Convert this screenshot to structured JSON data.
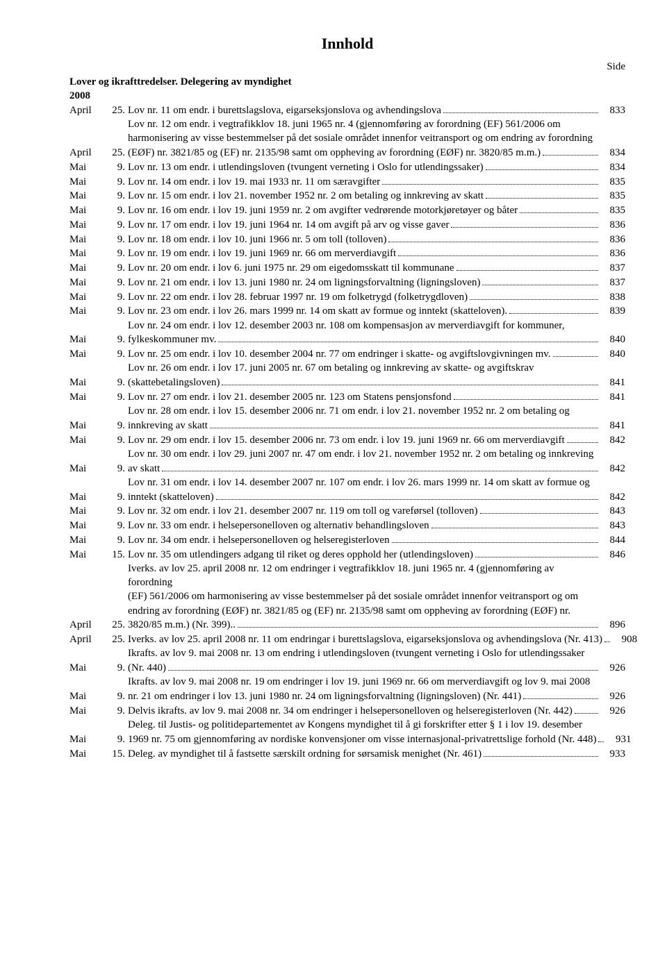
{
  "title": "Innhold",
  "side_label": "Side",
  "section_title": "Lover og ikrafttredelser. Delegering av myndighet",
  "year": "2008",
  "entries": [
    {
      "month": "April",
      "day": "25.",
      "text": "Lov nr. 11 om endr. i burettslagslova, eigarseksjonslova og avhendingslova",
      "page": "833"
    },
    {
      "month": "April",
      "day": "25.",
      "text": "Lov nr. 12 om endr. i vegtrafikklov 18. juni 1965 nr. 4 (gjennomføring av forordning (EF) 561/2006 om harmonisering av visse bestemmelser på det sosiale området innenfor veitransport og om endring av forordning (EØF) nr. 3821/85 og (EF) nr. 2135/98 samt om oppheving av forordning (EØF) nr. 3820/85 m.m.)",
      "page": "834"
    },
    {
      "month": "Mai",
      "day": "9.",
      "text": "Lov nr. 13 om endr. i utlendingsloven (tvungent verneting i Oslo for utlendingssaker)",
      "page": "834"
    },
    {
      "month": "Mai",
      "day": "9.",
      "text": "Lov nr. 14 om endr. i lov 19. mai 1933 nr. 11 om særavgifter",
      "page": "835"
    },
    {
      "month": "Mai",
      "day": "9.",
      "text": "Lov nr. 15 om endr. i lov 21. november 1952 nr. 2 om betaling og innkreving av skatt",
      "page": "835"
    },
    {
      "month": "Mai",
      "day": "9.",
      "text": "Lov nr. 16 om endr. i lov 19. juni 1959 nr. 2 om avgifter vedrørende motorkjøretøyer og båter",
      "page": "835"
    },
    {
      "month": "Mai",
      "day": "9.",
      "text": "Lov nr. 17 om endr. i lov 19. juni 1964 nr. 14 om avgift på arv og visse gaver",
      "page": "836"
    },
    {
      "month": "Mai",
      "day": "9.",
      "text": "Lov nr. 18 om endr. i lov 10. juni 1966 nr. 5 om toll (tolloven)",
      "page": "836"
    },
    {
      "month": "Mai",
      "day": "9.",
      "text": "Lov nr. 19 om endr. i lov 19. juni 1969 nr. 66 om merverdiavgift",
      "page": "836"
    },
    {
      "month": "Mai",
      "day": "9.",
      "text": "Lov nr. 20 om endr. i lov 6. juni 1975 nr. 29 om eigedomsskatt til kommunane",
      "page": "837"
    },
    {
      "month": "Mai",
      "day": "9.",
      "text": "Lov nr. 21 om endr. i lov 13. juni 1980 nr. 24 om ligningsforvaltning (ligningsloven)",
      "page": "837"
    },
    {
      "month": "Mai",
      "day": "9.",
      "text": "Lov nr. 22 om endr. i lov 28. februar 1997 nr. 19 om folketrygd (folketrygdloven)",
      "page": "838"
    },
    {
      "month": "Mai",
      "day": "9.",
      "text": "Lov nr. 23 om endr. i lov 26. mars 1999 nr. 14 om skatt av formue og inntekt (skatteloven).",
      "page": "839"
    },
    {
      "month": "Mai",
      "day": "9.",
      "text": "Lov nr. 24 om endr. i lov 12. desember 2003 nr. 108 om kompensasjon av merverdiavgift for kommuner, fylkeskommuner mv.",
      "page": "840"
    },
    {
      "month": "Mai",
      "day": "9.",
      "text": "Lov nr. 25 om endr. i lov 10. desember 2004 nr. 77 om endringer i skatte- og avgiftslovgivningen mv.",
      "page": "840"
    },
    {
      "month": "Mai",
      "day": "9.",
      "text": "Lov nr. 26 om endr. i lov 17. juni 2005 nr. 67 om betaling og innkreving av skatte- og avgiftskrav (skattebetalingsloven)",
      "page": "841"
    },
    {
      "month": "Mai",
      "day": "9.",
      "text": "Lov nr. 27 om endr. i lov 21. desember 2005 nr. 123 om Statens pensjonsfond",
      "page": "841"
    },
    {
      "month": "Mai",
      "day": "9.",
      "text": "Lov nr. 28 om endr. i lov 15. desember 2006 nr. 71 om endr. i lov 21. november 1952 nr. 2 om betaling og innkreving av skatt",
      "page": "841"
    },
    {
      "month": "Mai",
      "day": "9.",
      "text": "Lov nr. 29 om endr. i lov 15. desember 2006 nr. 73 om endr. i lov 19. juni 1969 nr. 66 om merverdiavgift",
      "page": "842"
    },
    {
      "month": "Mai",
      "day": "9.",
      "text": "Lov nr. 30 om endr. i lov 29. juni 2007 nr. 47 om endr. i lov 21. november 1952 nr. 2 om betaling og innkreving av skatt",
      "page": "842"
    },
    {
      "month": "Mai",
      "day": "9.",
      "text": "Lov nr. 31 om endr. i lov 14. desember 2007 nr. 107 om endr. i lov 26. mars 1999 nr. 14 om skatt av formue og inntekt (skatteloven)",
      "page": "842"
    },
    {
      "month": "Mai",
      "day": "9.",
      "text": "Lov nr. 32 om endr. i lov 21. desember 2007 nr. 119 om toll og vareførsel (tolloven)",
      "page": "843"
    },
    {
      "month": "Mai",
      "day": "9.",
      "text": "Lov nr. 33 om endr. i helsepersonelloven og alternativ behandlingsloven",
      "page": "843"
    },
    {
      "month": "Mai",
      "day": "9.",
      "text": "Lov nr. 34 om endr. i helsepersonelloven og helseregisterloven",
      "page": "844"
    },
    {
      "month": "Mai",
      "day": "15.",
      "text": "Lov nr. 35 om utlendingers adgang til riket og deres opphold her (utlendingsloven)",
      "page": "846"
    },
    {
      "month": "April",
      "day": "25.",
      "text": "Iverks. av lov 25. april 2008 nr. 12 om endringer i vegtrafikklov 18. juni 1965 nr. 4 (gjennomføring av forordning (EF) 561/2006 om harmonisering av visse bestemmelser på det sosiale området innenfor veitransport og om endring av forordning (EØF) nr. 3821/85 og (EF) nr. 2135/98 samt om oppheving av forordning (EØF) nr. 3820/85 m.m.) (Nr. 399)..",
      "page": "896"
    },
    {
      "month": "April",
      "day": "25.",
      "text": "Iverks. av lov 25. april 2008 nr. 11 om endringar i burettslagslova, eigarseksjonslova og avhendingslova (Nr. 413)",
      "page": "908"
    },
    {
      "month": "Mai",
      "day": "9.",
      "text": "Ikrafts. av lov 9. mai 2008 nr. 13 om endring i utlendingsloven (tvungent verneting i Oslo for utlendingssaker (Nr. 440)",
      "page": "926"
    },
    {
      "month": "Mai",
      "day": "9.",
      "text": "Ikrafts. av lov 9. mai 2008 nr. 19 om endringer i lov 19. juni 1969 nr. 66 om merverdiavgift og lov 9. mai 2008 nr. 21 om endringer i lov 13. juni 1980 nr. 24 om ligningsforvaltning (ligningsloven) (Nr. 441)",
      "page": "926"
    },
    {
      "month": "Mai",
      "day": "9.",
      "text": "Delvis ikrafts. av lov 9. mai 2008 nr. 34 om endringer i helsepersonelloven og helseregisterloven (Nr. 442)",
      "page": "926"
    },
    {
      "month": "Mai",
      "day": "9.",
      "text": "Deleg. til Justis- og politidepartementet av Kongens myndighet til å gi forskrifter etter § 1 i lov 19. desember 1969 nr. 75 om gjennomføring av nordiske konvensjoner om visse internasjonal-privatrettslige forhold (Nr. 448)",
      "page": "931"
    },
    {
      "month": "Mai",
      "day": "15.",
      "text": "Deleg. av myndighet til å fastsette særskilt ordning for sørsamisk menighet (Nr. 461)",
      "page": "933"
    }
  ]
}
